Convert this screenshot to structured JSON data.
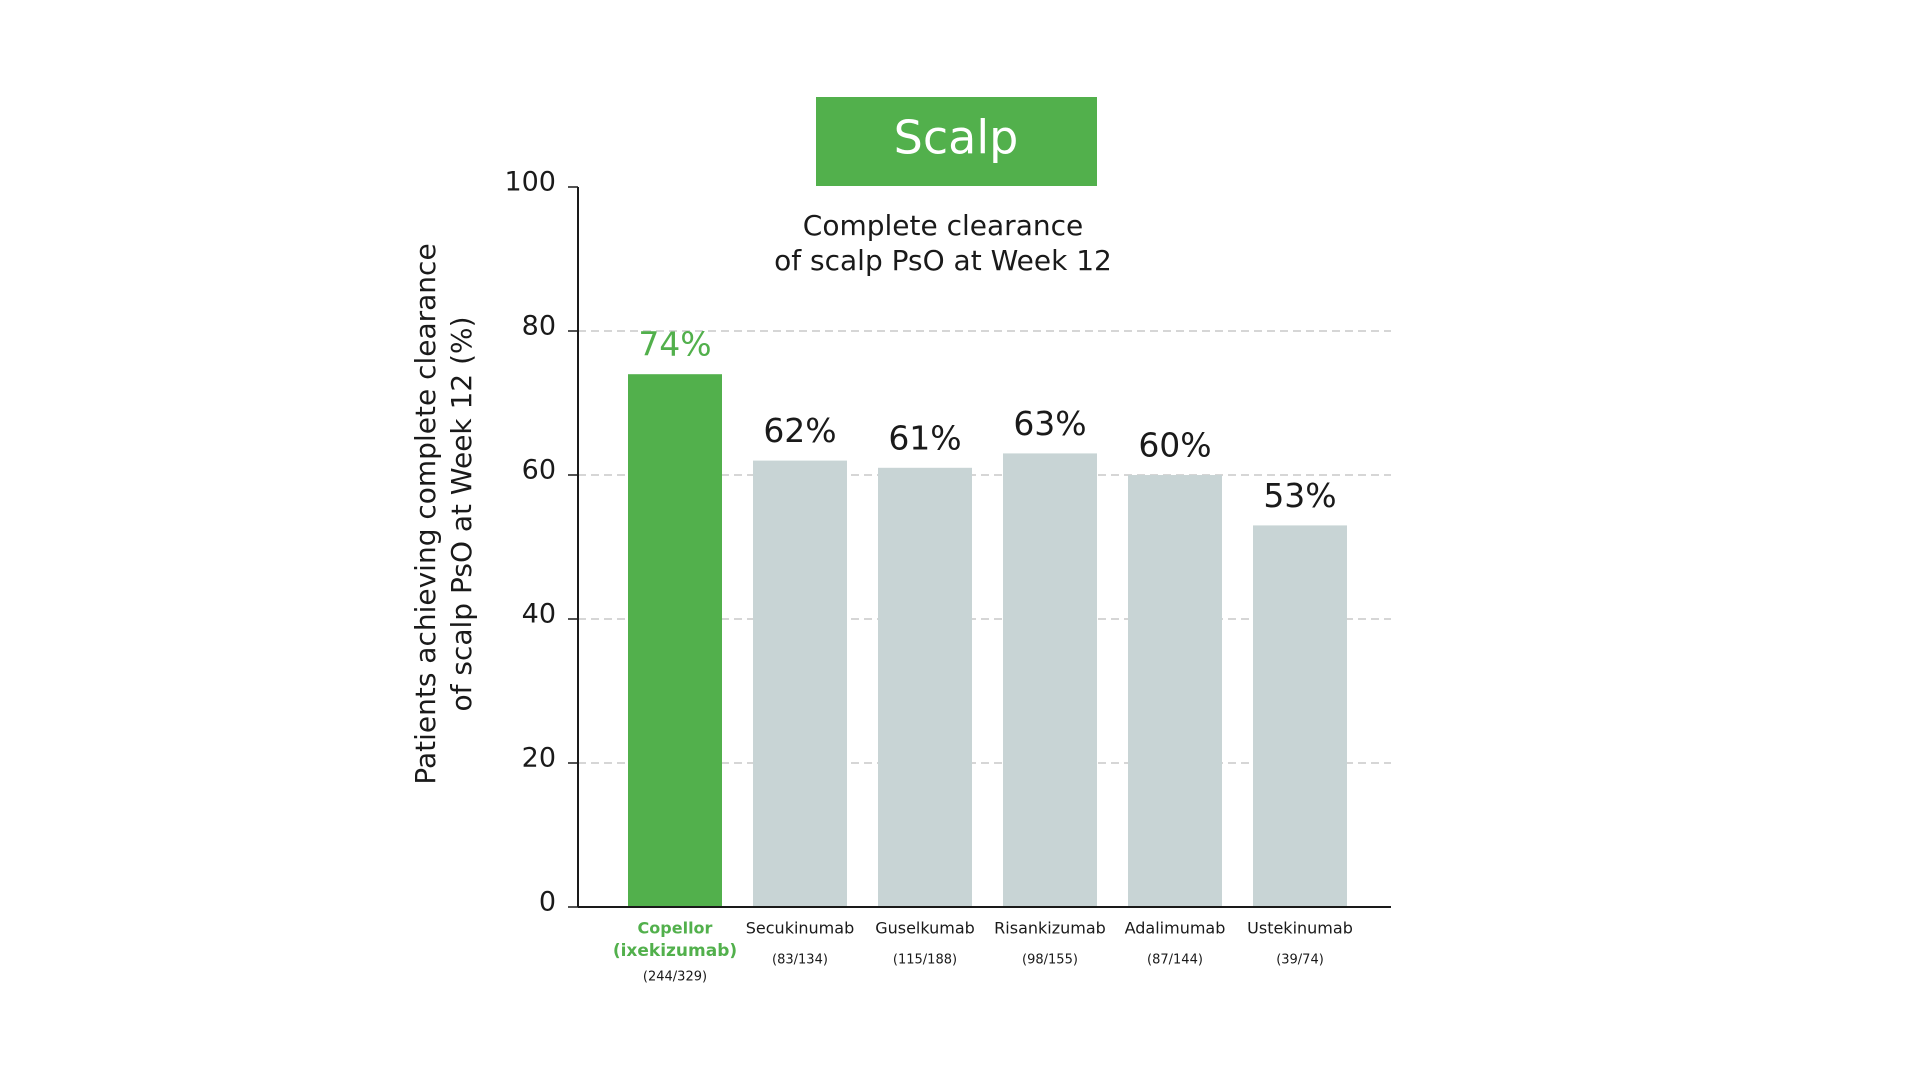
{
  "chart_data": {
    "type": "bar",
    "title": "Scalp",
    "subtitle": [
      "Complete clearance",
      "of scalp PsO at Week 12"
    ],
    "y_label": [
      "Patients achieving complete clearance",
      "of scalp PsO at Week 12 (%)"
    ],
    "categories": [
      {
        "name": "Copellor",
        "generic": "(ixekizumab)",
        "n": "(244/329)"
      },
      {
        "name": "Secukinumab",
        "n": "(83/134)"
      },
      {
        "name": "Guselkumab",
        "n": "(115/188)"
      },
      {
        "name": "Risankizumab",
        "n": "(98/155)"
      },
      {
        "name": "Adalimumab",
        "n": "(87/144)"
      },
      {
        "name": "Ustekinumab",
        "n": "(39/74)"
      }
    ],
    "values": [
      74,
      62,
      61,
      63,
      60,
      53
    ],
    "value_labels": [
      "74%",
      "62%",
      "61%",
      "63%",
      "60%",
      "53%"
    ],
    "colors": [
      "#52b04c",
      "#c8d4d5",
      "#c8d4d5",
      "#c8d4d5",
      "#c8d4d5",
      "#c8d4d5"
    ],
    "label_colors": [
      "#52b04c",
      "#1a1a1a",
      "#1a1a1a",
      "#1a1a1a",
      "#1a1a1a",
      "#1a1a1a"
    ],
    "title_color": "#52b04c",
    "ylim": [
      0,
      100
    ],
    "yticks": [
      0,
      20,
      40,
      60,
      80,
      100
    ],
    "grid": true
  }
}
